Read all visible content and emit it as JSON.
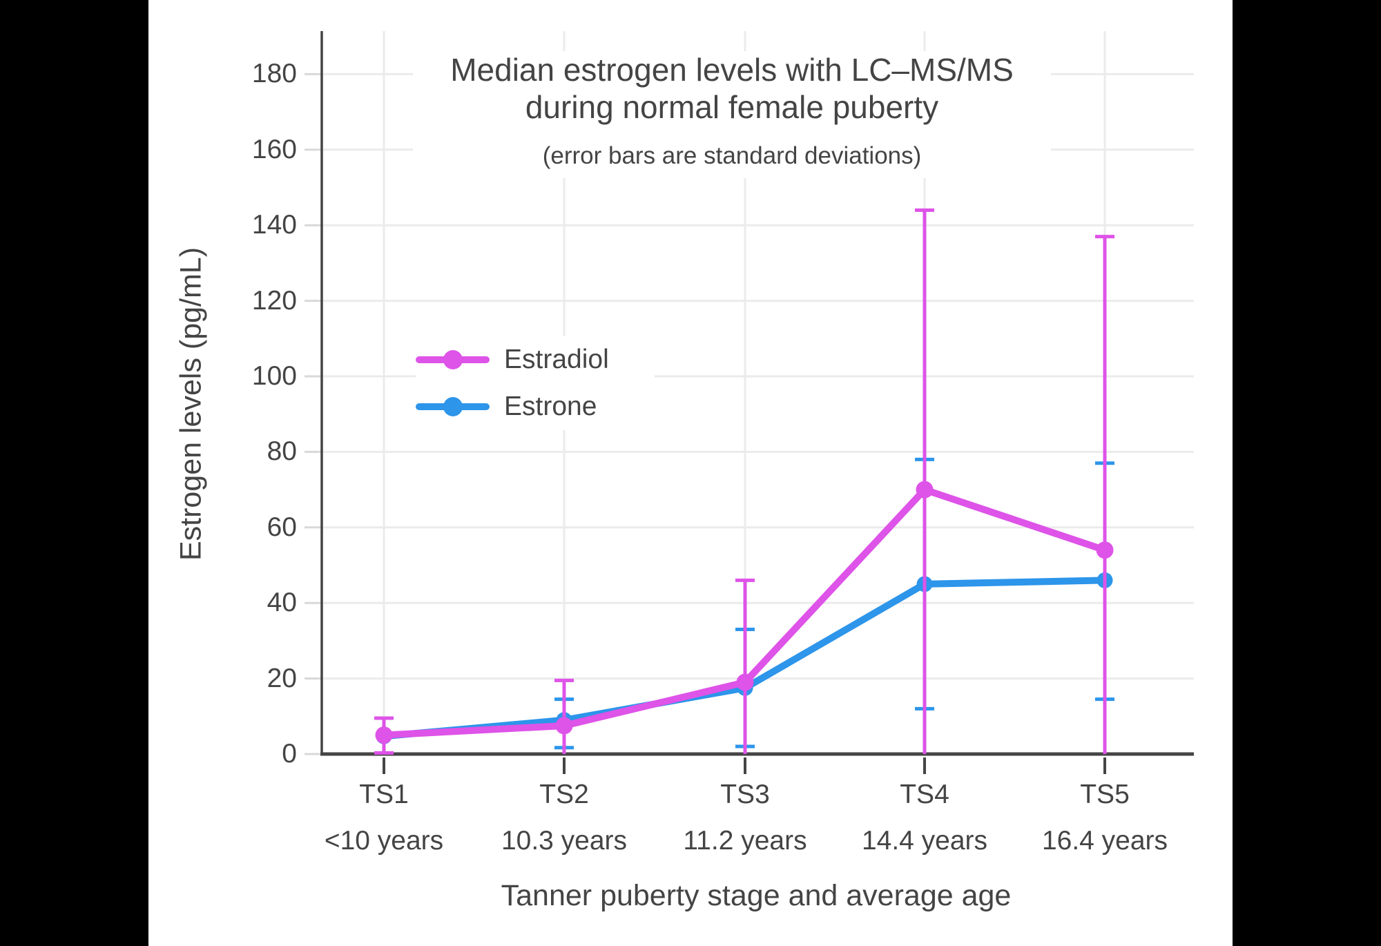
{
  "colors": {
    "background": "#000000",
    "panel": "#FFFFFF",
    "text": "#444444",
    "axis_line": "#444444",
    "gridline": "#EBEBEB",
    "y_tick_dash": "#D8D8D8",
    "estradiol": "#DE53E8",
    "estrone": "#2D95EA"
  },
  "title_display": {
    "line1": "Median estrogen levels with LC–MS/MS",
    "line2": "during normal female puberty",
    "subtitle": "(error bars are standard deviations)"
  },
  "chart_data": {
    "type": "line",
    "title": "Median estrogen levels with LC–MS/MS during normal female puberty",
    "subtitle": "(error bars are standard deviations)",
    "xlabel": "Tanner puberty stage and average age",
    "ylabel": "Estrogen levels (pg/mL)",
    "ylim": [
      0,
      191
    ],
    "grid": true,
    "legend_position": "inside-upper-left",
    "categories": [
      "TS1",
      "TS2",
      "TS3",
      "TS4",
      "TS5"
    ],
    "category_ages": [
      "<10 years",
      "10.3 years",
      "11.2 years",
      "14.4 years",
      "16.4 years"
    ],
    "y_ticks": [
      0,
      20,
      40,
      60,
      80,
      100,
      120,
      140,
      160,
      180
    ],
    "series": [
      {
        "name": "Estradiol",
        "color": "#DE53E8",
        "values": [
          5,
          7.5,
          19,
          70,
          54
        ],
        "error_top": [
          9.5,
          19.5,
          46,
          144,
          137
        ],
        "error_bottom": [
          0.3,
          0,
          0,
          0,
          0
        ],
        "bottom_cap": [
          true,
          false,
          false,
          false,
          false
        ]
      },
      {
        "name": "Estrone",
        "color": "#2D95EA",
        "values": [
          4.7,
          9,
          17.5,
          45,
          46
        ],
        "error_top": [
          null,
          14.5,
          33,
          78,
          77
        ],
        "error_bottom": [
          null,
          1.7,
          2,
          12,
          14.5
        ],
        "bottom_cap": [
          false,
          true,
          true,
          true,
          true
        ]
      }
    ]
  }
}
